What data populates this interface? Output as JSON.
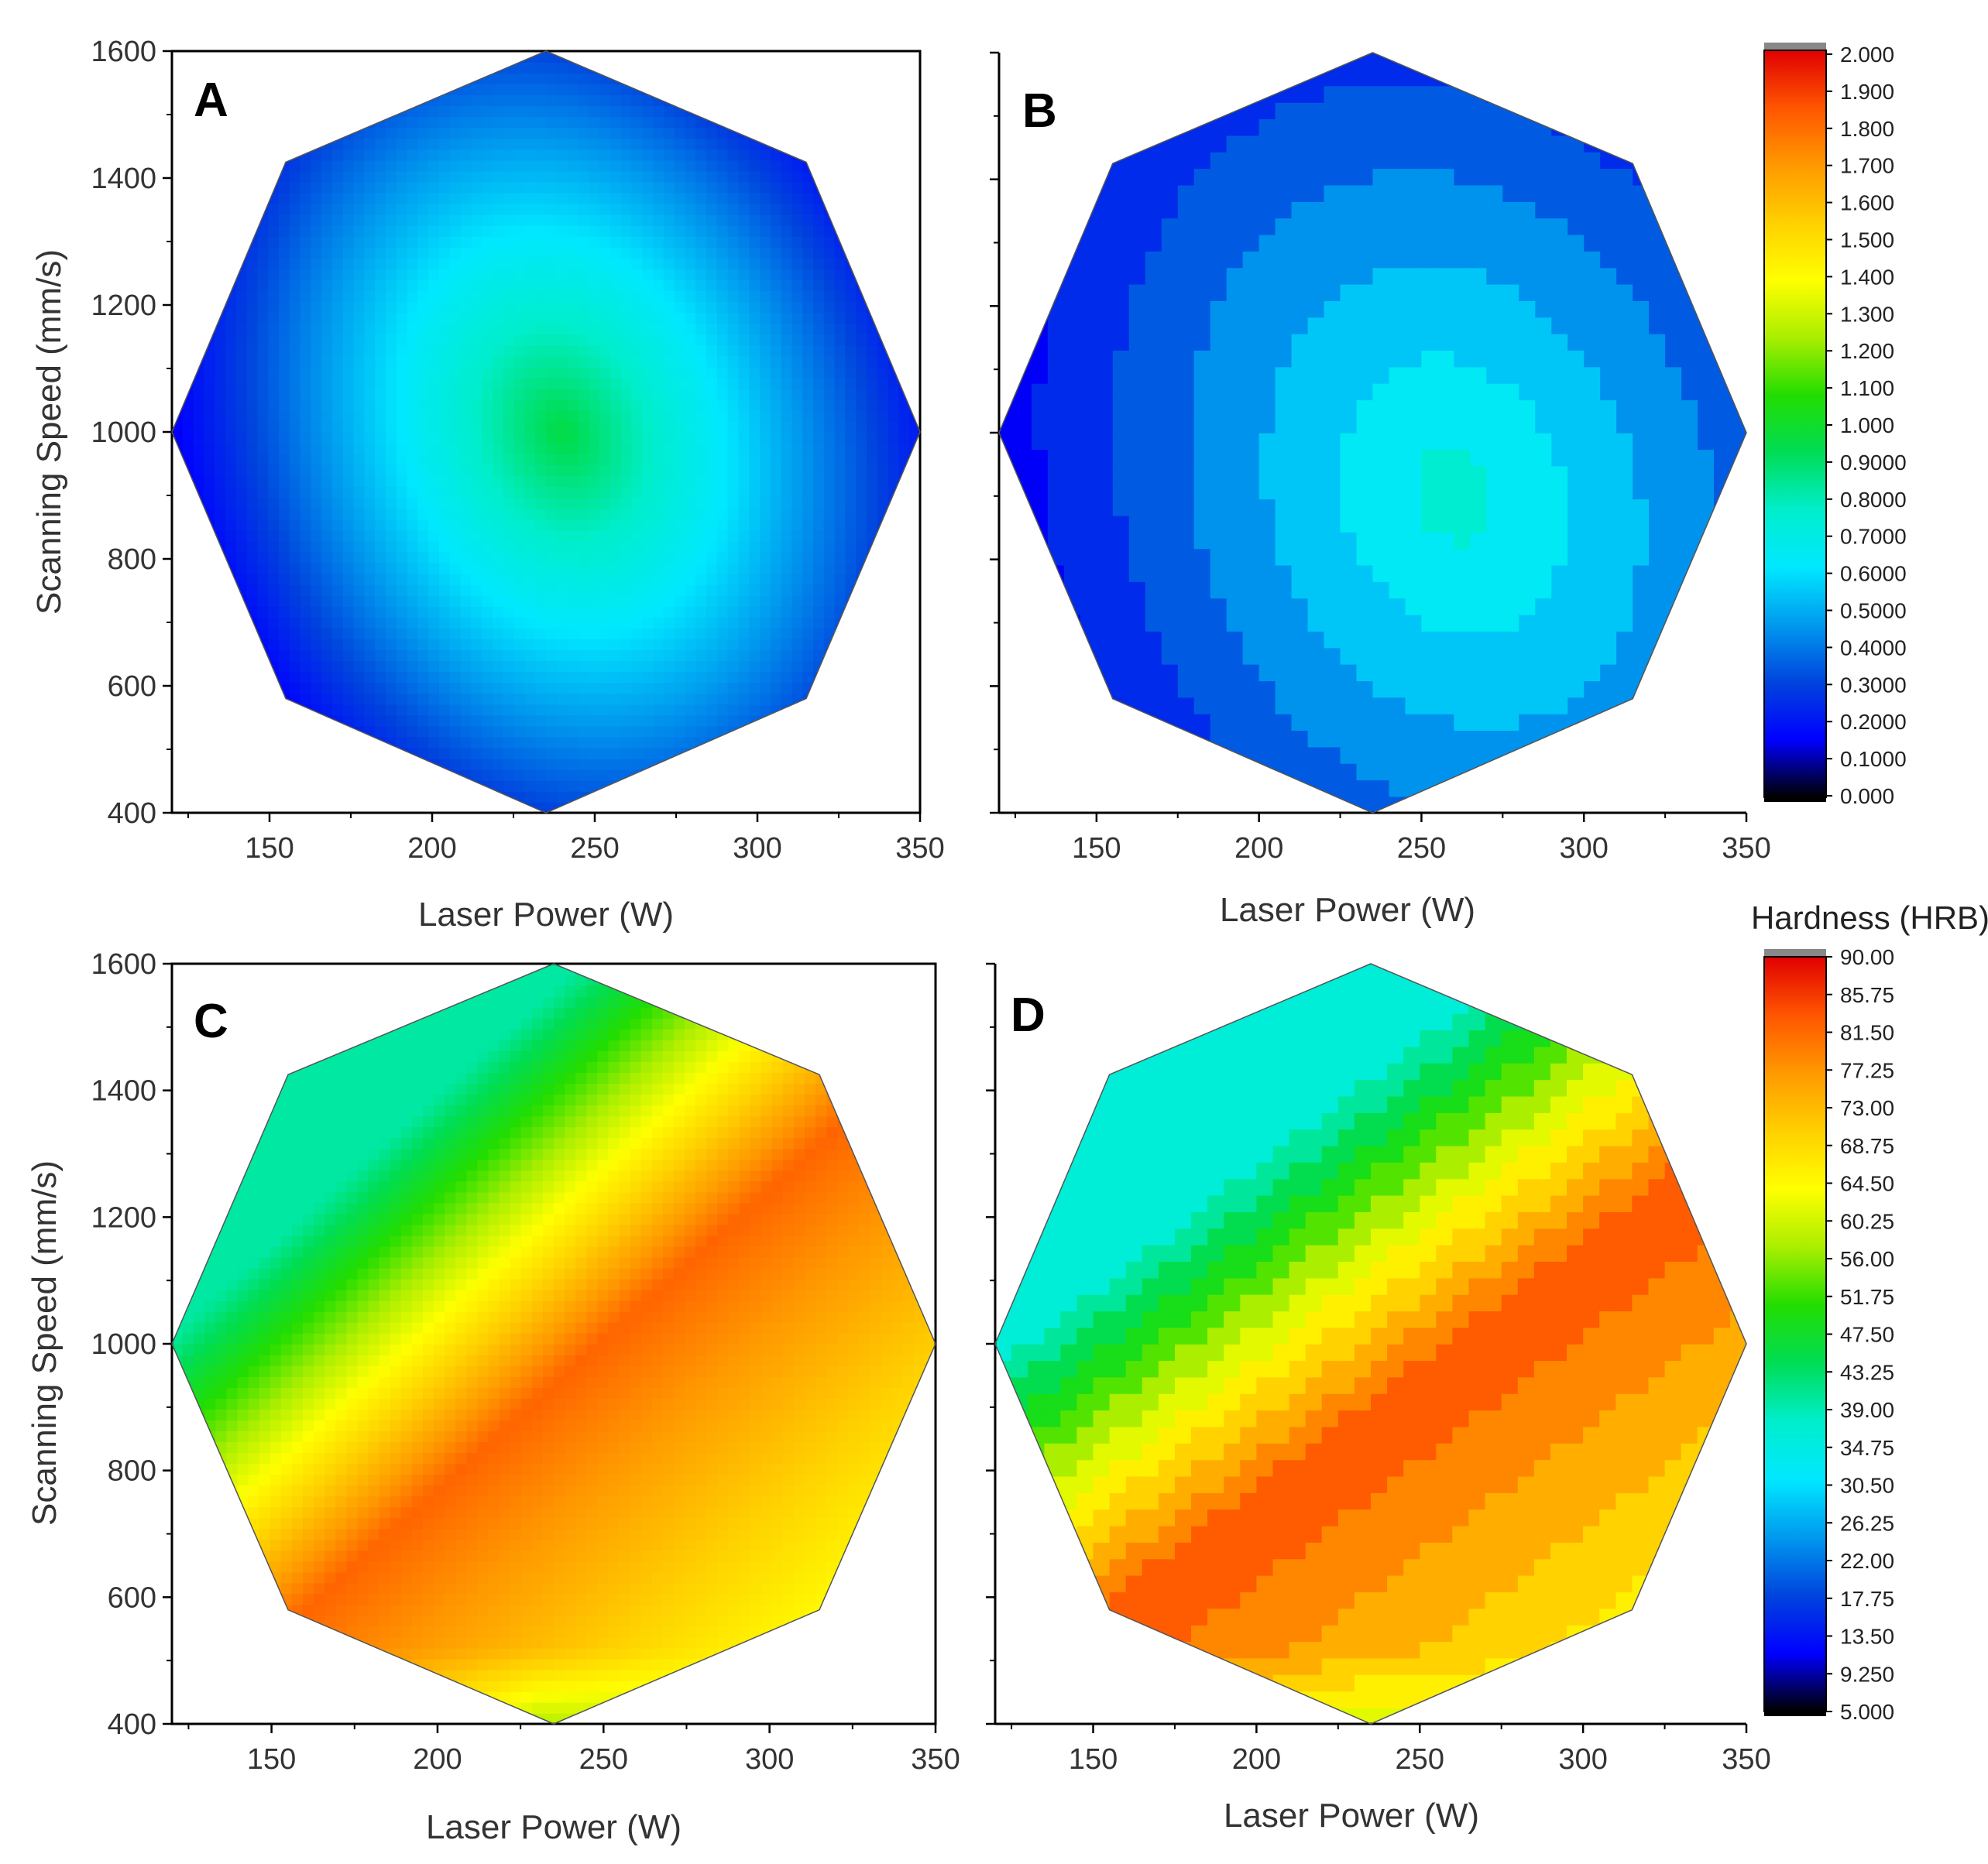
{
  "figure": {
    "colorbar_title": "Hardness (HRB)"
  },
  "chart_data": [
    {
      "panel": "A",
      "type": "heatmap",
      "style": "smooth contour map with contour lines",
      "title": "",
      "xlabel": "Laser Power (W)",
      "ylabel": "Scanning Speed (mm/s)",
      "xlim": [
        120,
        350
      ],
      "ylim": [
        400,
        1600
      ],
      "xticks": [
        150,
        200,
        250,
        300,
        350
      ],
      "yticks": [
        400,
        600,
        800,
        1000,
        1200,
        1400,
        1600
      ],
      "design_points": [
        [
          235,
          1600
        ],
        [
          315,
          1425
        ],
        [
          350,
          1000
        ],
        [
          315,
          580
        ],
        [
          235,
          400
        ],
        [
          155,
          580
        ],
        [
          120,
          1000
        ],
        [
          155,
          1425
        ]
      ],
      "z_min": 0.1,
      "z_max": 0.95,
      "optimum": {
        "x": 240,
        "y": 1000,
        "z": 0.95
      },
      "slope": {
        "x": 0.0045,
        "y": -0.0002
      },
      "colorbar": "top"
    },
    {
      "panel": "B",
      "type": "heatmap",
      "style": "filled contour bands",
      "title": "",
      "xlabel": "Laser Power (W)",
      "ylabel": "",
      "xlim": [
        120,
        350
      ],
      "ylim": [
        400,
        1600
      ],
      "xticks": [
        150,
        200,
        250,
        300,
        350
      ],
      "yticks": [
        400,
        600,
        800,
        1000,
        1200,
        1400,
        1600
      ],
      "design_points": [
        [
          235,
          1600
        ],
        [
          315,
          1425
        ],
        [
          350,
          1000
        ],
        [
          315,
          580
        ],
        [
          235,
          400
        ],
        [
          155,
          580
        ],
        [
          120,
          1000
        ],
        [
          155,
          1425
        ]
      ],
      "z_min": 0.2,
      "z_max": 0.75,
      "optimum": {
        "x": 260,
        "y": 900,
        "z": 0.75
      },
      "slope": {
        "x": 0.004,
        "y": -0.00025
      },
      "colorbar": "top"
    },
    {
      "panel": "C",
      "type": "heatmap",
      "style": "smooth contour map with contour lines",
      "title": "",
      "xlabel": "Laser Power (W)",
      "ylabel": "Scanning Speed (mm/s)",
      "xlim": [
        120,
        350
      ],
      "ylim": [
        400,
        1600
      ],
      "xticks": [
        150,
        200,
        250,
        300,
        350
      ],
      "yticks": [
        400,
        600,
        800,
        1000,
        1200,
        1400,
        1600
      ],
      "design_points": [
        [
          235,
          1600
        ],
        [
          315,
          1425
        ],
        [
          350,
          1000
        ],
        [
          315,
          580
        ],
        [
          235,
          400
        ],
        [
          155,
          580
        ],
        [
          120,
          1000
        ],
        [
          155,
          1425
        ]
      ],
      "ridge": {
        "from": [
          160,
          580
        ],
        "to": [
          280,
          1150
        ]
      },
      "z_min": 40,
      "z_max": 82,
      "colorbar": "bottom"
    },
    {
      "panel": "D",
      "type": "heatmap",
      "style": "filled contour bands",
      "title": "",
      "xlabel": "Laser Power (W)",
      "ylabel": "",
      "xlim": [
        120,
        350
      ],
      "ylim": [
        400,
        1600
      ],
      "xticks": [
        150,
        200,
        250,
        300,
        350
      ],
      "yticks": [
        400,
        600,
        800,
        1000,
        1200,
        1400,
        1600
      ],
      "design_points": [
        [
          235,
          1600
        ],
        [
          315,
          1425
        ],
        [
          350,
          1000
        ],
        [
          315,
          580
        ],
        [
          235,
          400
        ],
        [
          155,
          580
        ],
        [
          120,
          1000
        ],
        [
          155,
          1425
        ]
      ],
      "ridge": {
        "from": [
          160,
          580
        ],
        "to": [
          330,
          1250
        ]
      },
      "z_min": 35,
      "z_max": 84,
      "colorbar": "bottom"
    }
  ],
  "colorbars": {
    "top": {
      "labels": [
        "2.000",
        "1.900",
        "1.800",
        "1.700",
        "1.600",
        "1.500",
        "1.400",
        "1.300",
        "1.200",
        "1.100",
        "1.000",
        "0.9000",
        "0.8000",
        "0.7000",
        "0.6000",
        "0.5000",
        "0.4000",
        "0.3000",
        "0.2000",
        "0.1000",
        "0.000"
      ],
      "range": [
        0,
        2
      ]
    },
    "bottom": {
      "labels": [
        "90.00",
        "85.75",
        "81.50",
        "77.25",
        "73.00",
        "68.75",
        "64.50",
        "60.25",
        "56.00",
        "51.75",
        "47.50",
        "43.25",
        "39.00",
        "34.75",
        "30.50",
        "26.25",
        "22.00",
        "17.75",
        "13.50",
        "9.250",
        "5.000"
      ],
      "range": [
        5,
        90
      ]
    },
    "stops": [
      "#e00000",
      "#ff5500",
      "#ff9900",
      "#ffd000",
      "#ffff00",
      "#aaee00",
      "#22dd00",
      "#00dd55",
      "#00eecc",
      "#00e8ff",
      "#0099ee",
      "#0044dd",
      "#0000ff",
      "#000000"
    ]
  }
}
